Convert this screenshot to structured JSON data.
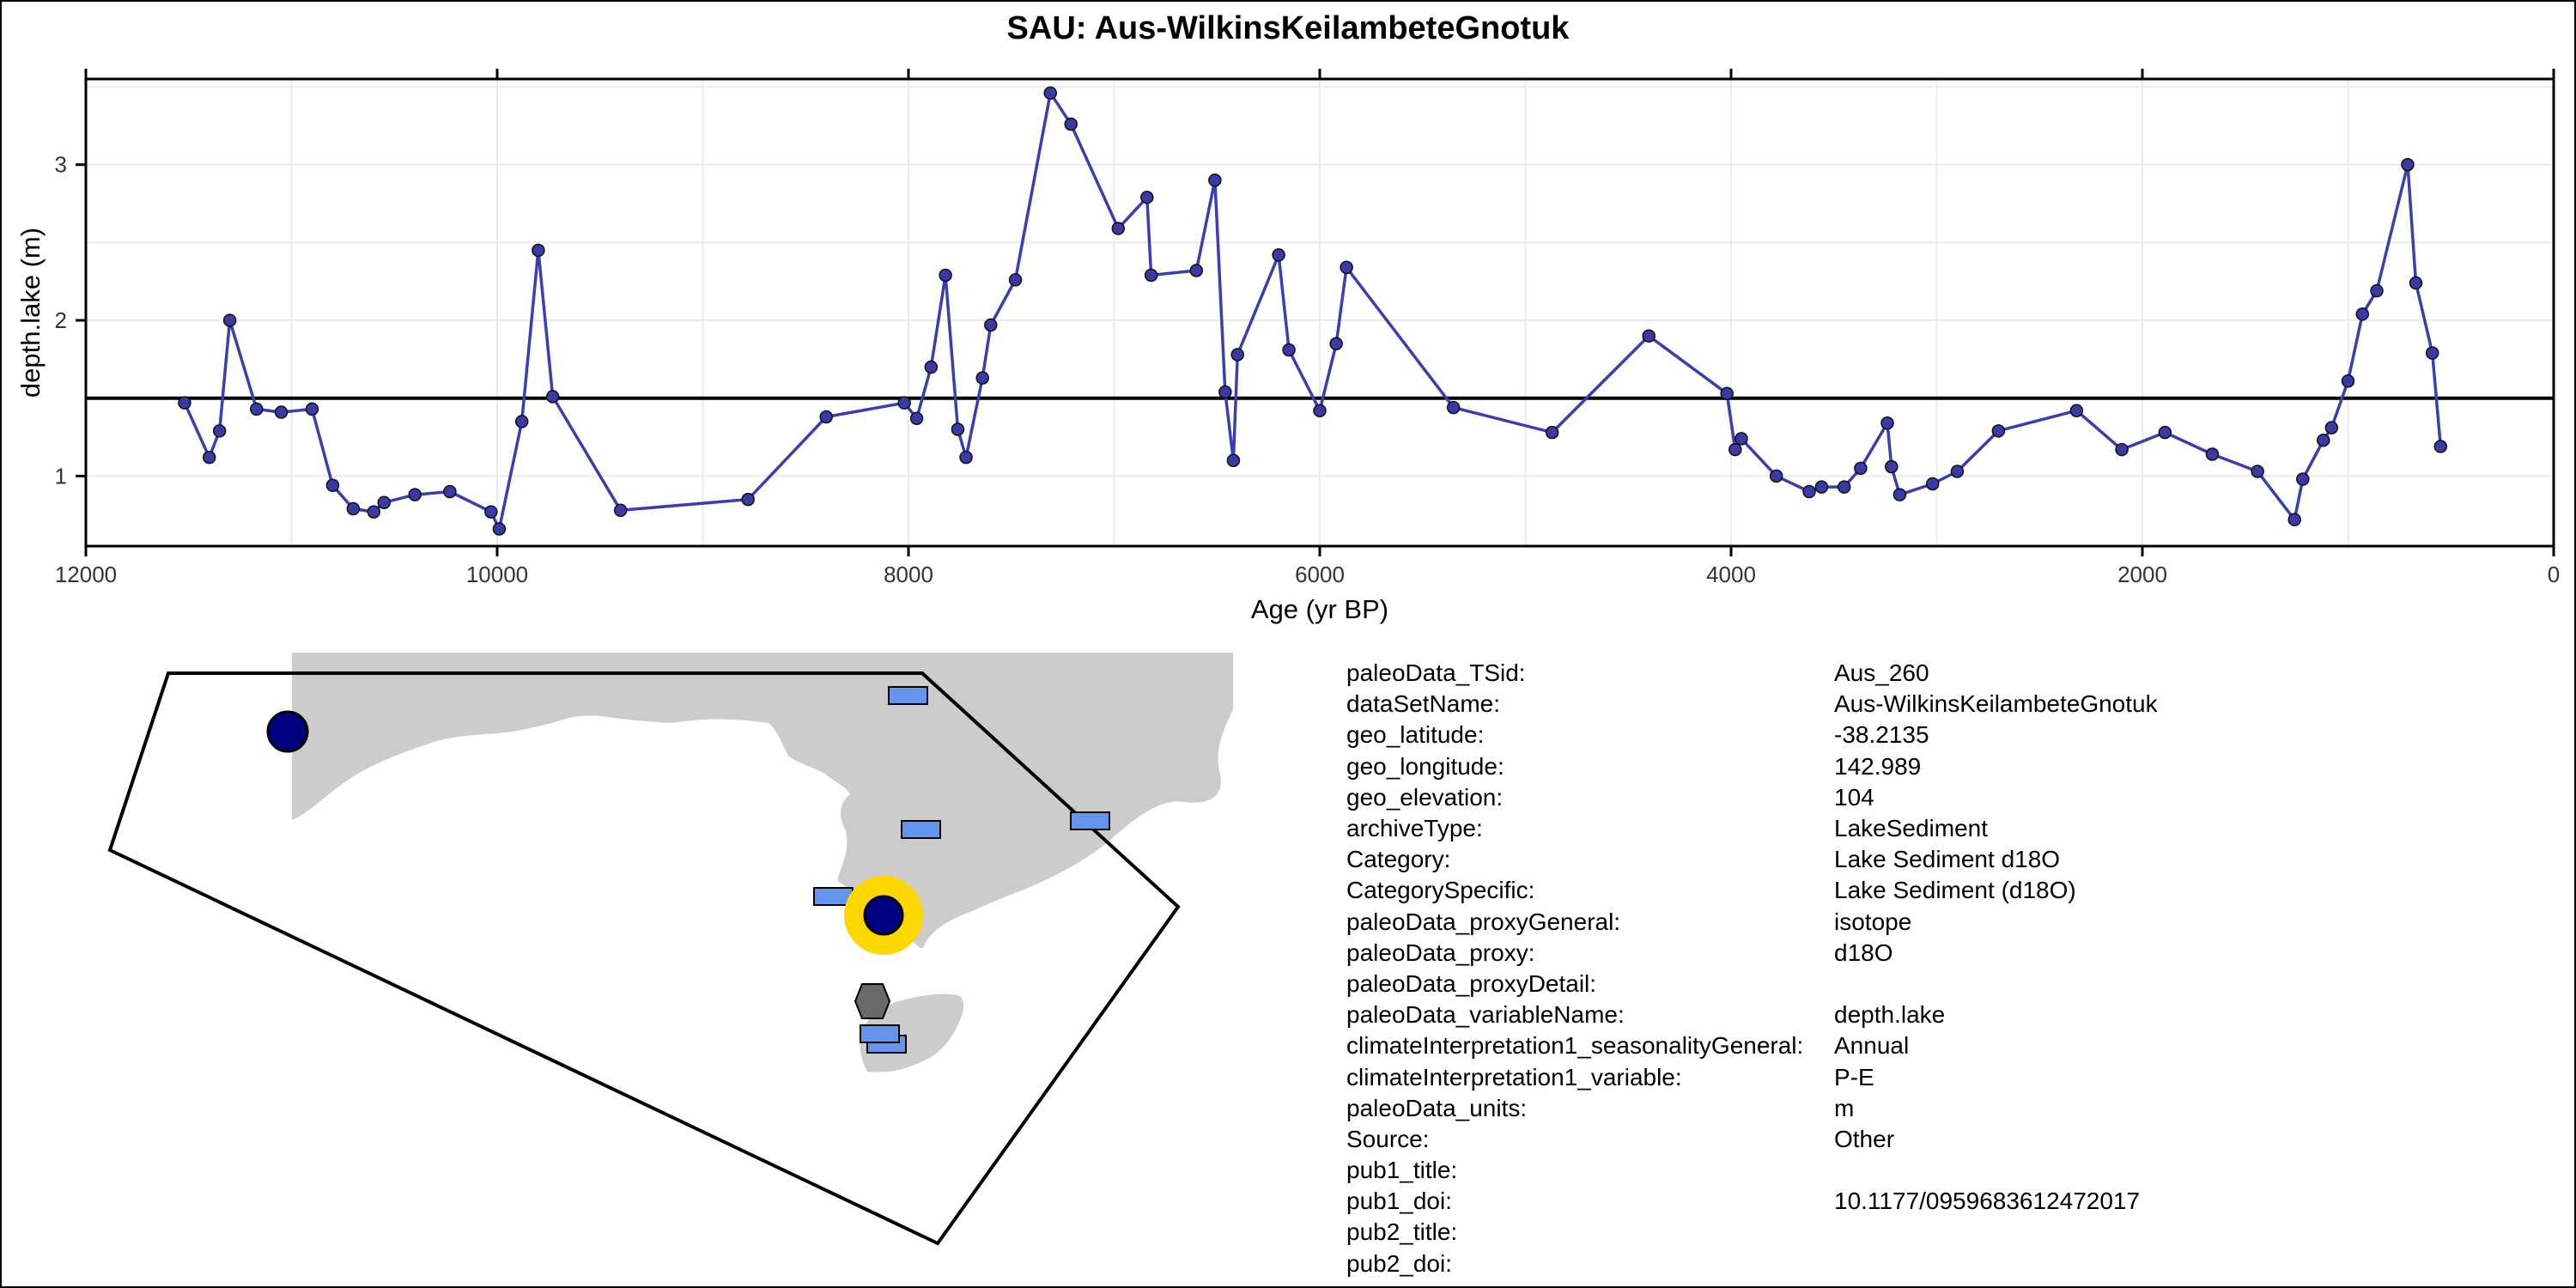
{
  "chart_data": {
    "type": "line",
    "title": "SAU: Aus-WilkinsKeilambeteGnotuk",
    "xlabel": "Age (yr BP)",
    "ylabel": "depth.lake (m)",
    "xlim": [
      12000,
      0
    ],
    "ylim": [
      0.55,
      3.55
    ],
    "x_reversed": true,
    "x_ticks": [
      12000,
      10000,
      8000,
      6000,
      4000,
      2000,
      0
    ],
    "x_tick_labels": [
      "12000",
      "10000",
      "8000",
      "6000",
      "4000",
      "2000",
      "0"
    ],
    "y_ticks": [
      1,
      2,
      3
    ],
    "y_tick_labels": [
      "1",
      "2",
      "3"
    ],
    "grid": true,
    "reference_line_y": 1.5,
    "series": [
      {
        "color": "#3c3cb4",
        "marker_color": "#3a3aa6",
        "x": [
          11520,
          11400,
          11350,
          11300,
          11170,
          11050,
          10900,
          10800,
          10700,
          10600,
          10550,
          10400,
          10230,
          10030,
          9990,
          9880,
          9800,
          9730,
          9400,
          8780,
          8400,
          8020,
          7960,
          7890,
          7820,
          7760,
          7720,
          7640,
          7600,
          7480,
          7310,
          7210,
          6980,
          6840,
          6820,
          6600,
          6510,
          6460,
          6420,
          6400,
          6200,
          6150,
          6000,
          5920,
          5870,
          5350,
          4870,
          4400,
          4020,
          3980,
          3950,
          3780,
          3620,
          3560,
          3450,
          3370,
          3240,
          3220,
          3180,
          3020,
          2900,
          2700,
          2320,
          2100,
          1890,
          1660,
          1440,
          1260,
          1220,
          1120,
          1080,
          1000,
          930,
          860,
          710,
          670,
          590,
          550
        ],
        "y": [
          1.47,
          1.12,
          1.29,
          2.0,
          1.43,
          1.41,
          1.43,
          0.94,
          0.79,
          0.77,
          0.83,
          0.88,
          0.9,
          0.77,
          0.66,
          1.35,
          2.45,
          1.51,
          0.78,
          0.85,
          1.38,
          1.47,
          1.37,
          1.7,
          2.29,
          1.3,
          1.12,
          1.63,
          1.97,
          2.26,
          3.46,
          3.26,
          2.59,
          2.79,
          2.29,
          2.32,
          2.9,
          1.54,
          1.1,
          1.78,
          2.42,
          1.81,
          1.42,
          1.85,
          2.34,
          1.44,
          1.28,
          1.9,
          1.53,
          1.17,
          1.24,
          1.0,
          0.9,
          0.93,
          0.93,
          1.05,
          1.34,
          1.06,
          0.88,
          0.95,
          1.03,
          1.29,
          1.42,
          1.17,
          1.28,
          1.14,
          1.03,
          0.72,
          0.98,
          1.23,
          1.31,
          1.61,
          2.04,
          2.19,
          3.0,
          2.24,
          1.79,
          1.19
        ]
      }
    ]
  },
  "map": {
    "land_color": "#cccccc",
    "site_color": "#000080",
    "highlight_color": "#ffd700",
    "record_color": "#6495ed",
    "other_color": "#696969",
    "site_icons": [
      "site-circle",
      "site-circle",
      "rectangle",
      "rectangle",
      "rectangle",
      "rectangle",
      "rectangle",
      "rectangle",
      "hexagon"
    ]
  },
  "metadata": [
    {
      "key": "paleoData_TSid:",
      "value": "Aus_260"
    },
    {
      "key": "dataSetName:",
      "value": "Aus-WilkinsKeilambeteGnotuk"
    },
    {
      "key": "geo_latitude:",
      "value": "-38.2135"
    },
    {
      "key": "geo_longitude:",
      "value": "142.989"
    },
    {
      "key": "geo_elevation:",
      "value": "104"
    },
    {
      "key": "archiveType:",
      "value": "LakeSediment"
    },
    {
      "key": "Category:",
      "value": "Lake Sediment d18O"
    },
    {
      "key": "CategorySpecific:",
      "value": "Lake Sediment (d18O)"
    },
    {
      "key": "paleoData_proxyGeneral:",
      "value": "isotope"
    },
    {
      "key": "paleoData_proxy:",
      "value": "d18O"
    },
    {
      "key": "paleoData_proxyDetail:",
      "value": ""
    },
    {
      "key": "paleoData_variableName:",
      "value": "depth.lake"
    },
    {
      "key": "climateInterpretation1_seasonalityGeneral:",
      "value": "Annual"
    },
    {
      "key": "climateInterpretation1_variable:",
      "value": "P-E"
    },
    {
      "key": "paleoData_units:",
      "value": "m"
    },
    {
      "key": "Source:",
      "value": "Other"
    },
    {
      "key": "pub1_title:",
      "value": ""
    },
    {
      "key": "pub1_doi:",
      "value": "10.1177/0959683612472017"
    },
    {
      "key": "pub2_title:",
      "value": ""
    },
    {
      "key": "pub2_doi:",
      "value": ""
    }
  ]
}
